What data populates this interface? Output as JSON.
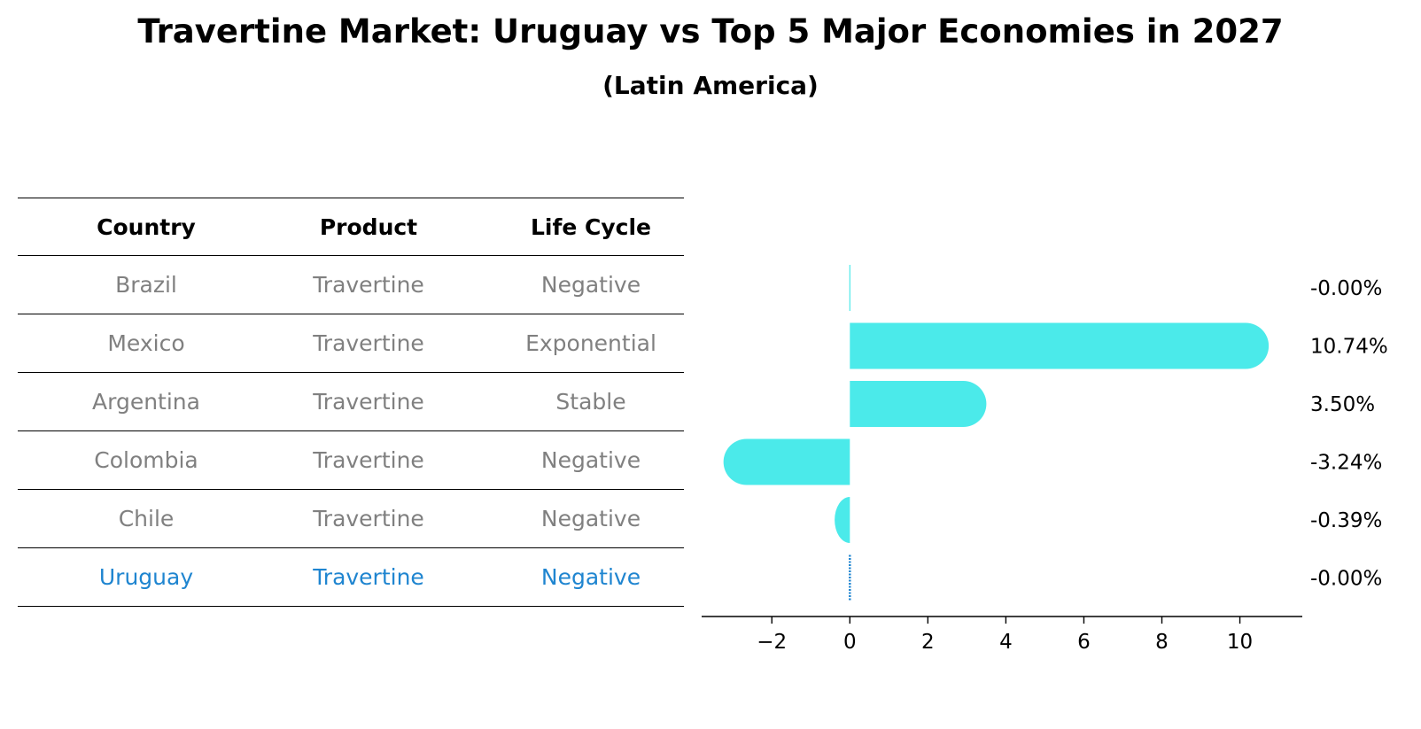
{
  "title": "Travertine Market: Uruguay vs Top 5 Major Economies in 2027",
  "subtitle": "(Latin America)",
  "table": {
    "headers": [
      "Country",
      "Product",
      "Life Cycle"
    ],
    "rows": [
      [
        "Brazil",
        "Travertine",
        "Negative"
      ],
      [
        "Mexico",
        "Travertine",
        "Exponential"
      ],
      [
        "Argentina",
        "Travertine",
        "Stable"
      ],
      [
        "Colombia",
        "Travertine",
        "Negative"
      ],
      [
        "Chile",
        "Travertine",
        "Negative"
      ],
      [
        "Uruguay",
        "Travertine",
        "Negative"
      ]
    ],
    "highlight_row": 5
  },
  "chart_data": {
    "type": "bar",
    "orientation": "horizontal",
    "categories": [
      "Brazil",
      "Mexico",
      "Argentina",
      "Colombia",
      "Chile",
      "Uruguay"
    ],
    "values": [
      -0.0,
      10.74,
      3.5,
      -3.24,
      -0.39,
      -0.0
    ],
    "value_labels": [
      "-0.00%",
      "10.74%",
      "3.50%",
      "-3.24%",
      "-0.39%",
      "-0.00%"
    ],
    "xlim": [
      -3.8,
      11.6
    ],
    "xticks": [
      -2,
      0,
      2,
      4,
      6,
      8,
      10
    ],
    "xtick_labels": [
      "−2",
      "0",
      "2",
      "4",
      "6",
      "8",
      "10"
    ],
    "bar_color": "#4beaea",
    "highlight_color": "#1f85d0",
    "highlight_index": 5,
    "grid": false
  }
}
